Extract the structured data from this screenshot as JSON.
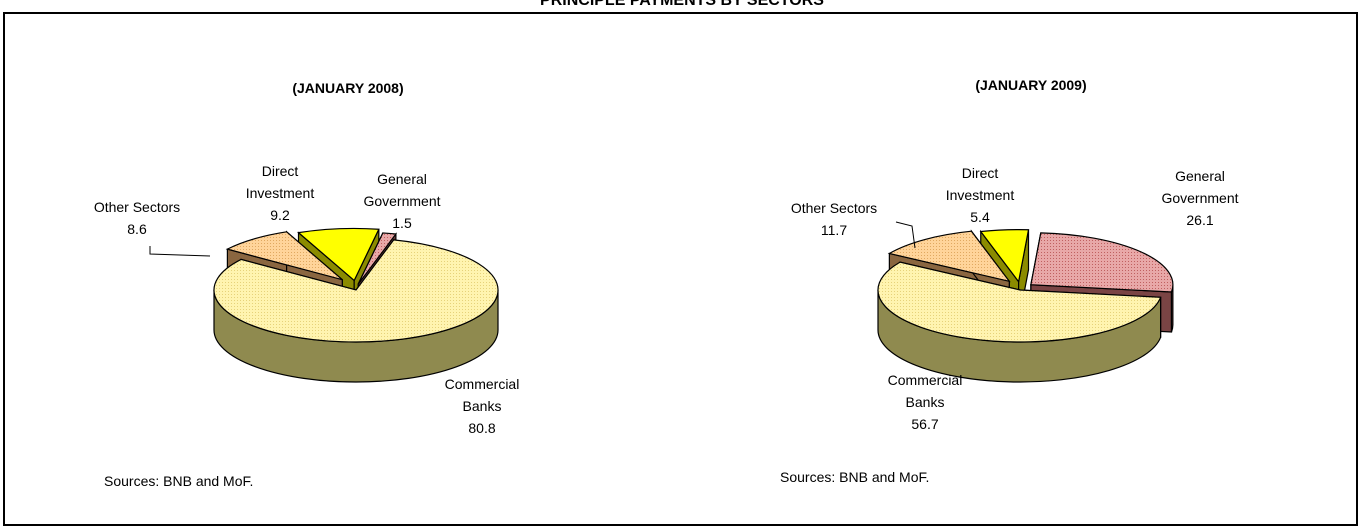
{
  "page": {
    "title": "PRINCIPLE PAYMENTS BY SECTORS"
  },
  "chart_data": [
    {
      "type": "pie",
      "title": "(JANUARY 2008)",
      "source": "Sources: BNB and MoF.",
      "slices": [
        {
          "name_lines": [
            "General",
            "Government"
          ],
          "value": 1.5,
          "label": "1.5",
          "color": "#e3a0a0",
          "dark": "#7a4444"
        },
        {
          "name_lines": [
            "Commercial",
            "Banks"
          ],
          "value": 80.8,
          "label": "80.8",
          "color": "#fff2a8",
          "dark": "#8f8a4f"
        },
        {
          "name_lines": [
            "Other Sectors"
          ],
          "value": 8.6,
          "label": "8.6",
          "color": "#ffcf8f",
          "dark": "#8a6640"
        },
        {
          "name_lines": [
            "Direct",
            "Investment"
          ],
          "value": 9.2,
          "label": "9.2",
          "color": "#ffff00",
          "dark": "#8b8b00"
        }
      ]
    },
    {
      "type": "pie",
      "title": "(JANUARY 2009)",
      "source": "Sources: BNB and MoF.",
      "slices": [
        {
          "name_lines": [
            "General",
            "Government"
          ],
          "value": 26.1,
          "label": "26.1",
          "color": "#e3a0a0",
          "dark": "#7a4444"
        },
        {
          "name_lines": [
            "Commercial",
            "Banks"
          ],
          "value": 56.7,
          "label": "56.7",
          "color": "#fff2a8",
          "dark": "#8f8a4f"
        },
        {
          "name_lines": [
            "Other Sectors"
          ],
          "value": 11.7,
          "label": "11.7",
          "color": "#ffcf8f",
          "dark": "#8a6640"
        },
        {
          "name_lines": [
            "Direct",
            "Investment"
          ],
          "value": 5.4,
          "label": "5.4",
          "color": "#ffff00",
          "dark": "#8b8b00"
        }
      ]
    }
  ]
}
